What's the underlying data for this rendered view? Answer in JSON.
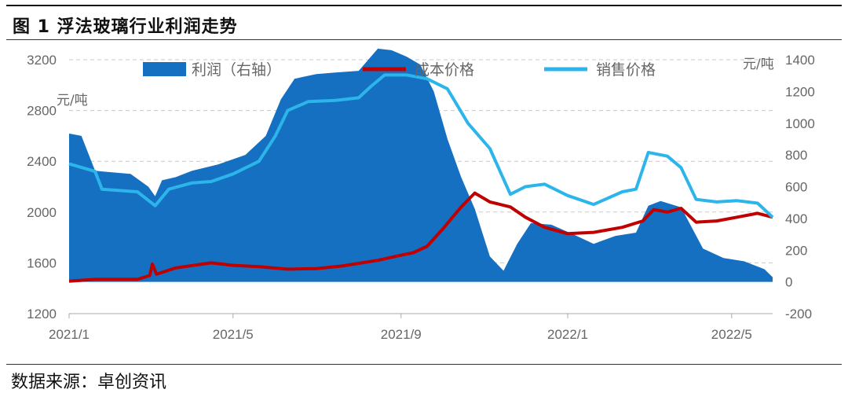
{
  "figure": {
    "title": "图 1  浮法玻璃行业利润走势",
    "source": "数据来源：卓创资讯"
  },
  "colors": {
    "profit": "#1570c2",
    "cost": "#c00000",
    "price": "#2bb5ea",
    "grid": "#c8c8c8",
    "axis": "#aaaaaa"
  },
  "chart_data": {
    "type": "line+area",
    "x_ticks": [
      "2021/1",
      "2021/5",
      "2021/9",
      "2022/1",
      "2022/5"
    ],
    "x_range": [
      "2021-01-01",
      "2022-05-31"
    ],
    "y_left": {
      "unit": "元/吨",
      "ticks": [
        1200,
        1600,
        2000,
        2400,
        2800,
        3200
      ],
      "range": [
        1200,
        3200
      ]
    },
    "y_right": {
      "unit": "元/吨",
      "ticks": [
        -200,
        0,
        200,
        400,
        600,
        800,
        1000,
        1200,
        1400
      ],
      "range": [
        -200,
        1400
      ]
    },
    "grid": "horizontal dashed",
    "legend": {
      "position": "top",
      "items": [
        "利润（右轴）",
        "成本价格",
        "销售价格"
      ]
    },
    "series": [
      {
        "name": "利润（右轴）",
        "type": "area",
        "axis": "right",
        "points": [
          [
            "2021-01-01",
            935
          ],
          [
            "2021-01-10",
            920
          ],
          [
            "2021-01-20",
            700
          ],
          [
            "2021-02-15",
            680
          ],
          [
            "2021-02-28",
            600
          ],
          [
            "2021-03-05",
            540
          ],
          [
            "2021-03-10",
            640
          ],
          [
            "2021-03-20",
            660
          ],
          [
            "2021-04-01",
            700
          ],
          [
            "2021-04-20",
            740
          ],
          [
            "2021-05-10",
            800
          ],
          [
            "2021-05-25",
            920
          ],
          [
            "2021-06-05",
            1150
          ],
          [
            "2021-06-15",
            1280
          ],
          [
            "2021-07-01",
            1310
          ],
          [
            "2021-07-15",
            1320
          ],
          [
            "2021-08-01",
            1330
          ],
          [
            "2021-08-15",
            1470
          ],
          [
            "2021-08-25",
            1460
          ],
          [
            "2021-09-05",
            1420
          ],
          [
            "2021-09-15",
            1370
          ],
          [
            "2021-09-25",
            1200
          ],
          [
            "2021-10-05",
            900
          ],
          [
            "2021-10-15",
            660
          ],
          [
            "2021-10-25",
            460
          ],
          [
            "2021-11-05",
            160
          ],
          [
            "2021-11-15",
            70
          ],
          [
            "2021-11-25",
            240
          ],
          [
            "2021-12-05",
            370
          ],
          [
            "2021-12-20",
            360
          ],
          [
            "2022-01-05",
            300
          ],
          [
            "2022-01-20",
            240
          ],
          [
            "2022-02-05",
            290
          ],
          [
            "2022-02-20",
            310
          ],
          [
            "2022-03-01",
            480
          ],
          [
            "2022-03-10",
            510
          ],
          [
            "2022-03-25",
            470
          ],
          [
            "2022-04-10",
            210
          ],
          [
            "2022-04-25",
            150
          ],
          [
            "2022-05-10",
            130
          ],
          [
            "2022-05-25",
            80
          ],
          [
            "2022-05-31",
            30
          ]
        ]
      },
      {
        "name": "成本价格",
        "type": "line",
        "axis": "left",
        "points": [
          [
            "2021-01-01",
            1455
          ],
          [
            "2021-01-20",
            1470
          ],
          [
            "2021-02-20",
            1470
          ],
          [
            "2021-03-01",
            1500
          ],
          [
            "2021-03-03",
            1590
          ],
          [
            "2021-03-06",
            1510
          ],
          [
            "2021-03-20",
            1560
          ],
          [
            "2021-04-15",
            1600
          ],
          [
            "2021-05-01",
            1580
          ],
          [
            "2021-05-20",
            1570
          ],
          [
            "2021-06-10",
            1550
          ],
          [
            "2021-07-01",
            1555
          ],
          [
            "2021-07-20",
            1575
          ],
          [
            "2021-08-15",
            1620
          ],
          [
            "2021-09-01",
            1660
          ],
          [
            "2021-09-10",
            1680
          ],
          [
            "2021-09-20",
            1730
          ],
          [
            "2021-10-01",
            1860
          ],
          [
            "2021-10-15",
            2040
          ],
          [
            "2021-10-25",
            2150
          ],
          [
            "2021-11-05",
            2080
          ],
          [
            "2021-11-20",
            2040
          ],
          [
            "2021-12-01",
            1960
          ],
          [
            "2021-12-15",
            1880
          ],
          [
            "2022-01-01",
            1830
          ],
          [
            "2022-01-20",
            1840
          ],
          [
            "2022-02-10",
            1880
          ],
          [
            "2022-02-25",
            1930
          ],
          [
            "2022-03-05",
            2020
          ],
          [
            "2022-03-15",
            2000
          ],
          [
            "2022-03-25",
            2030
          ],
          [
            "2022-04-05",
            1920
          ],
          [
            "2022-04-20",
            1930
          ],
          [
            "2022-05-05",
            1960
          ],
          [
            "2022-05-20",
            1990
          ],
          [
            "2022-05-31",
            1960
          ]
        ]
      },
      {
        "name": "销售价格",
        "type": "line",
        "axis": "left",
        "points": [
          [
            "2021-01-01",
            2380
          ],
          [
            "2021-01-20",
            2320
          ],
          [
            "2021-01-25",
            2180
          ],
          [
            "2021-02-20",
            2160
          ],
          [
            "2021-03-05",
            2050
          ],
          [
            "2021-03-15",
            2180
          ],
          [
            "2021-04-01",
            2230
          ],
          [
            "2021-04-15",
            2240
          ],
          [
            "2021-05-01",
            2300
          ],
          [
            "2021-05-20",
            2400
          ],
          [
            "2021-06-01",
            2600
          ],
          [
            "2021-06-10",
            2800
          ],
          [
            "2021-06-25",
            2870
          ],
          [
            "2021-07-15",
            2880
          ],
          [
            "2021-08-01",
            2900
          ],
          [
            "2021-08-10",
            2990
          ],
          [
            "2021-08-20",
            3080
          ],
          [
            "2021-09-05",
            3080
          ],
          [
            "2021-09-20",
            3050
          ],
          [
            "2021-10-05",
            2970
          ],
          [
            "2021-10-20",
            2700
          ],
          [
            "2021-11-05",
            2500
          ],
          [
            "2021-11-20",
            2140
          ],
          [
            "2021-12-01",
            2200
          ],
          [
            "2021-12-15",
            2220
          ],
          [
            "2022-01-01",
            2130
          ],
          [
            "2022-01-20",
            2060
          ],
          [
            "2022-02-10",
            2160
          ],
          [
            "2022-02-20",
            2180
          ],
          [
            "2022-03-01",
            2470
          ],
          [
            "2022-03-15",
            2440
          ],
          [
            "2022-03-25",
            2350
          ],
          [
            "2022-04-05",
            2100
          ],
          [
            "2022-04-20",
            2080
          ],
          [
            "2022-05-05",
            2090
          ],
          [
            "2022-05-20",
            2070
          ],
          [
            "2022-05-31",
            1960
          ]
        ]
      }
    ]
  }
}
